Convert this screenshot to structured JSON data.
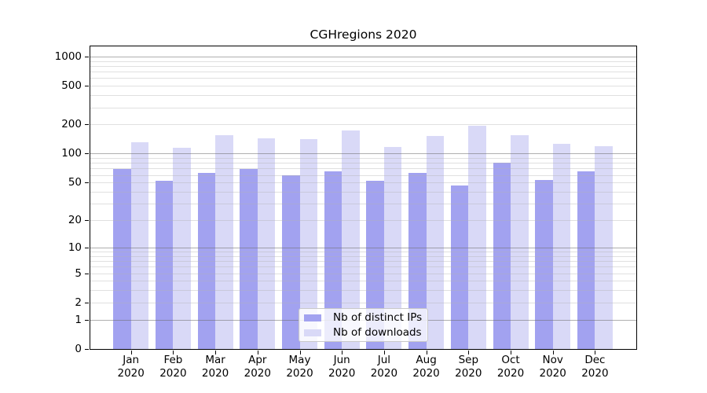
{
  "title": "CGHregions 2020",
  "colors": {
    "ips_bar": "#a2a2f0",
    "downloads_bar": "#d9d9f7",
    "grid_major": "rgba(110,110,110,0.55)",
    "grid_minor": "rgba(178,178,178,0.40)",
    "axis_frame": "#000000",
    "text": "#000000",
    "legend_border": "#c9c9c9"
  },
  "legend": {
    "items": [
      {
        "label": "Nb of distinct IPs",
        "series": "ips"
      },
      {
        "label": "Nb of downloads",
        "series": "downloads"
      }
    ]
  },
  "chart_data": {
    "type": "bar",
    "title": "CGHregions 2020",
    "x_months": [
      "Jan",
      "Feb",
      "Mar",
      "Apr",
      "May",
      "Jun",
      "Jul",
      "Aug",
      "Sep",
      "Oct",
      "Nov",
      "Dec"
    ],
    "x_year": "2020",
    "categories": [
      "Jan 2020",
      "Feb 2020",
      "Mar 2020",
      "Apr 2020",
      "May 2020",
      "Jun 2020",
      "Jul 2020",
      "Aug 2020",
      "Sep 2020",
      "Oct 2020",
      "Nov 2020",
      "Dec 2020"
    ],
    "series": [
      {
        "name": "Nb of distinct IPs",
        "key": "ips",
        "values": [
          69,
          52,
          63,
          69,
          60,
          65,
          52,
          63,
          47,
          80,
          53,
          65
        ]
      },
      {
        "name": "Nb of downloads",
        "key": "downloads",
        "values": [
          130,
          115,
          154,
          145,
          140,
          175,
          117,
          153,
          193,
          155,
          127,
          120
        ]
      }
    ],
    "yscale": "log1p",
    "yticks": [
      1000,
      500,
      200,
      100,
      50,
      20,
      10,
      5,
      2,
      1,
      0
    ],
    "ylim": [
      0,
      1315
    ],
    "grid": true,
    "legend_position": "lower center"
  }
}
